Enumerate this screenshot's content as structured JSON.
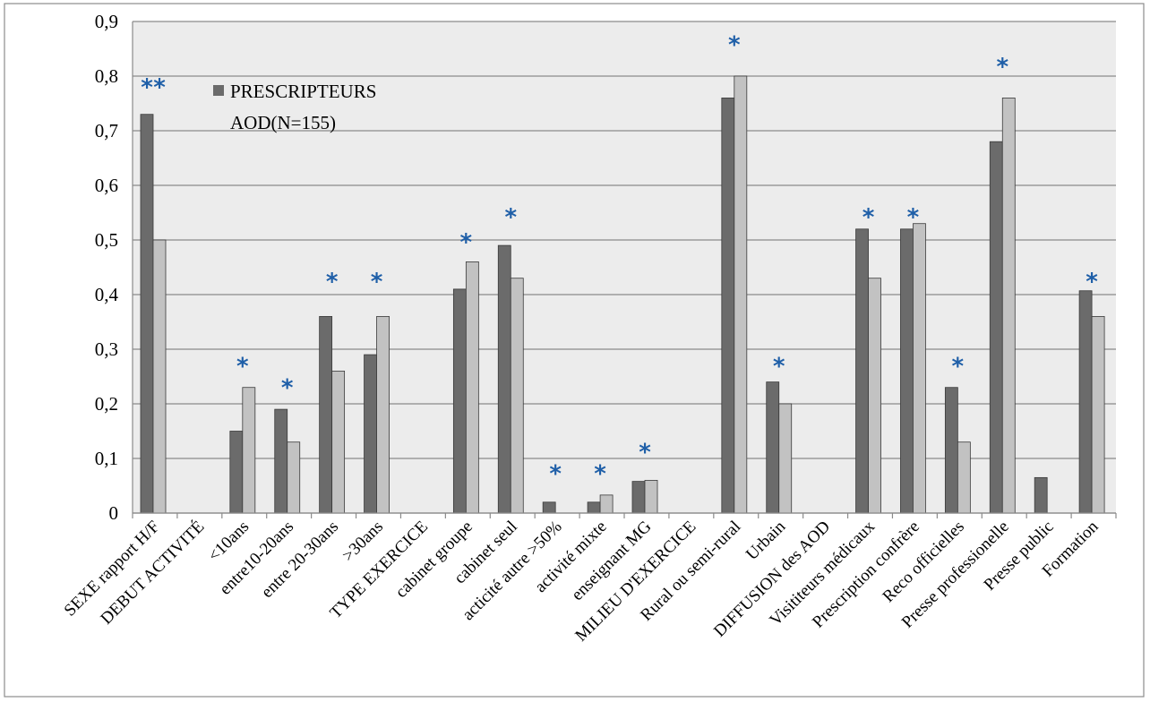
{
  "chart_data": {
    "type": "bar",
    "title": "",
    "xlabel": "",
    "ylabel": "",
    "ylim": [
      0,
      0.9
    ],
    "yticks": [
      "0",
      "0,1",
      "0,2",
      "0,3",
      "0,4",
      "0,5",
      "0,6",
      "0,7",
      "0,8",
      "0,9"
    ],
    "grid": true,
    "legend_position": "top-left",
    "categories": [
      "SEXE rapport H/F",
      "DEBUT ACTIVITÉ",
      "<10ans",
      "entre10-20ans",
      "entre 20-30ans",
      ">30ans",
      "TYPE EXERCICE",
      "cabinet groupe",
      "cabinet seul",
      "acticité autre >50%",
      "activité mixte",
      "enseignant MG",
      "MILIEU D'EXERCICE",
      "Rural ou semi-rural",
      "Urbain",
      "DIFFUSION des AOD",
      "Visititeurs médicaux",
      "Prescription confrère",
      "Reco officielles",
      "Presse professionelle",
      "Presse public",
      "Formation"
    ],
    "series": [
      {
        "name": "PRESCRIPTEURS AOD(N=155)",
        "color": "#6b6b6b",
        "values": [
          0.73,
          null,
          0.15,
          0.19,
          0.36,
          0.29,
          null,
          0.41,
          0.49,
          0.02,
          0.02,
          0.058,
          null,
          0.76,
          0.24,
          null,
          0.52,
          0.52,
          0.23,
          0.68,
          0.065,
          0.407
        ]
      },
      {
        "color": "#c2c2c2",
        "values": [
          0.5,
          null,
          0.23,
          0.13,
          0.26,
          0.36,
          null,
          0.46,
          0.43,
          null,
          0.033,
          0.06,
          null,
          0.8,
          0.2,
          null,
          0.43,
          0.53,
          0.13,
          0.76,
          null,
          0.36
        ]
      }
    ],
    "markers": {
      "symbol": "*",
      "color": "#1f5fa8",
      "points": [
        {
          "category": "SEXE rapport H/F",
          "value": 0.78,
          "count": 2
        },
        {
          "category": "<10ans",
          "value": 0.27,
          "count": 1
        },
        {
          "category": "entre10-20ans",
          "value": 0.23,
          "count": 1
        },
        {
          "category": "entre 20-30ans",
          "value": 0.425,
          "count": 1
        },
        {
          "category": ">30ans",
          "value": 0.425,
          "count": 1
        },
        {
          "category": "cabinet groupe",
          "value": 0.497,
          "count": 1
        },
        {
          "category": "cabinet seul",
          "value": 0.543,
          "count": 1
        },
        {
          "category": "acticité autre >50%",
          "value": 0.073,
          "count": 1
        },
        {
          "category": "activité mixte",
          "value": 0.073,
          "count": 1
        },
        {
          "category": "enseignant MG",
          "value": 0.112,
          "count": 1
        },
        {
          "category": "Rural ou semi-rural",
          "value": 0.858,
          "count": 1
        },
        {
          "category": "Urbain",
          "value": 0.27,
          "count": 1
        },
        {
          "category": "Visititeurs médicaux",
          "value": 0.543,
          "count": 1
        },
        {
          "category": "Prescription confrère",
          "value": 0.543,
          "count": 1
        },
        {
          "category": "Reco officielles",
          "value": 0.27,
          "count": 1
        },
        {
          "category": "Presse professionelle",
          "value": 0.818,
          "count": 1
        },
        {
          "category": "Formation",
          "value": 0.425,
          "count": 1
        }
      ]
    }
  }
}
